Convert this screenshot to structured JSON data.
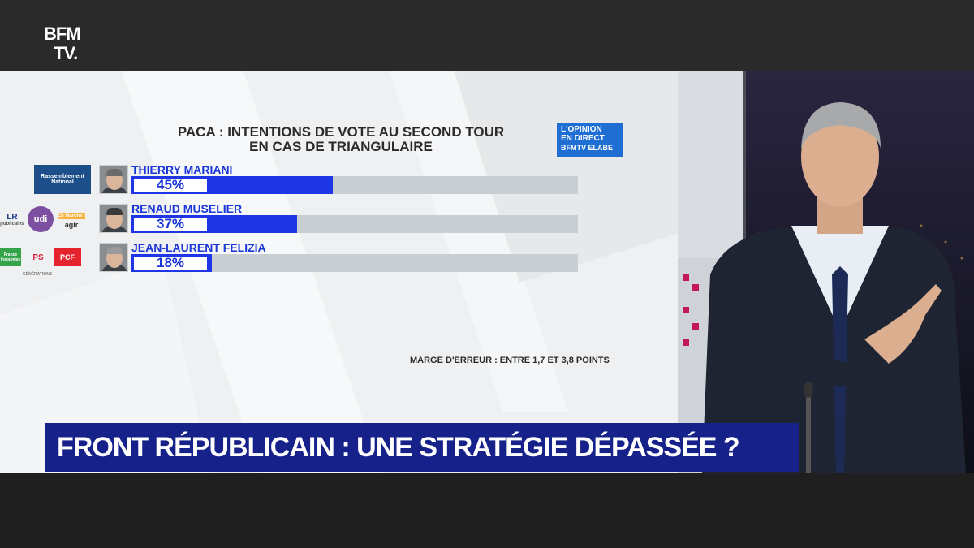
{
  "channel": {
    "logo_line1": "BFM",
    "logo_line2": "TV."
  },
  "badge": {
    "line1": "L'OPINION",
    "line2": "EN DIRECT",
    "line3": "BFMTV ELABE"
  },
  "party_logos": {
    "rn": "Rassemblement National",
    "lr": "LR",
    "lr_sub": "publicains",
    "udi": "udi",
    "en_marche": "En Marche !",
    "agir": "agir",
    "fi": "France Insoumise",
    "ps": "PS",
    "pcf": "PCF",
    "generations": "GÉNÉRATIONS"
  },
  "chart_data": {
    "type": "bar",
    "title_line1": "PACA : INTENTIONS DE VOTE AU SECOND TOUR",
    "title_line2": "EN CAS DE TRIANGULAIRE",
    "categories": [
      "THIERRY MARIANI",
      "RENAUD MUSELIER",
      "JEAN-LAURENT FELIZIA"
    ],
    "values": [
      45,
      37,
      18
    ],
    "value_labels": [
      "45%",
      "37%",
      "18%"
    ],
    "xlim": [
      0,
      100
    ],
    "orientation": "horizontal",
    "colors": {
      "bar": "#1f36e6",
      "track": "#c9ced3",
      "label": "#1a35d8"
    },
    "note": "MARGE D'ERREUR : ENTRE 1,7 ET 3,8 POINTS"
  },
  "headline": "FRONT RÉPUBLICAIN : UNE STRATÉGIE DÉPASSÉE ?"
}
